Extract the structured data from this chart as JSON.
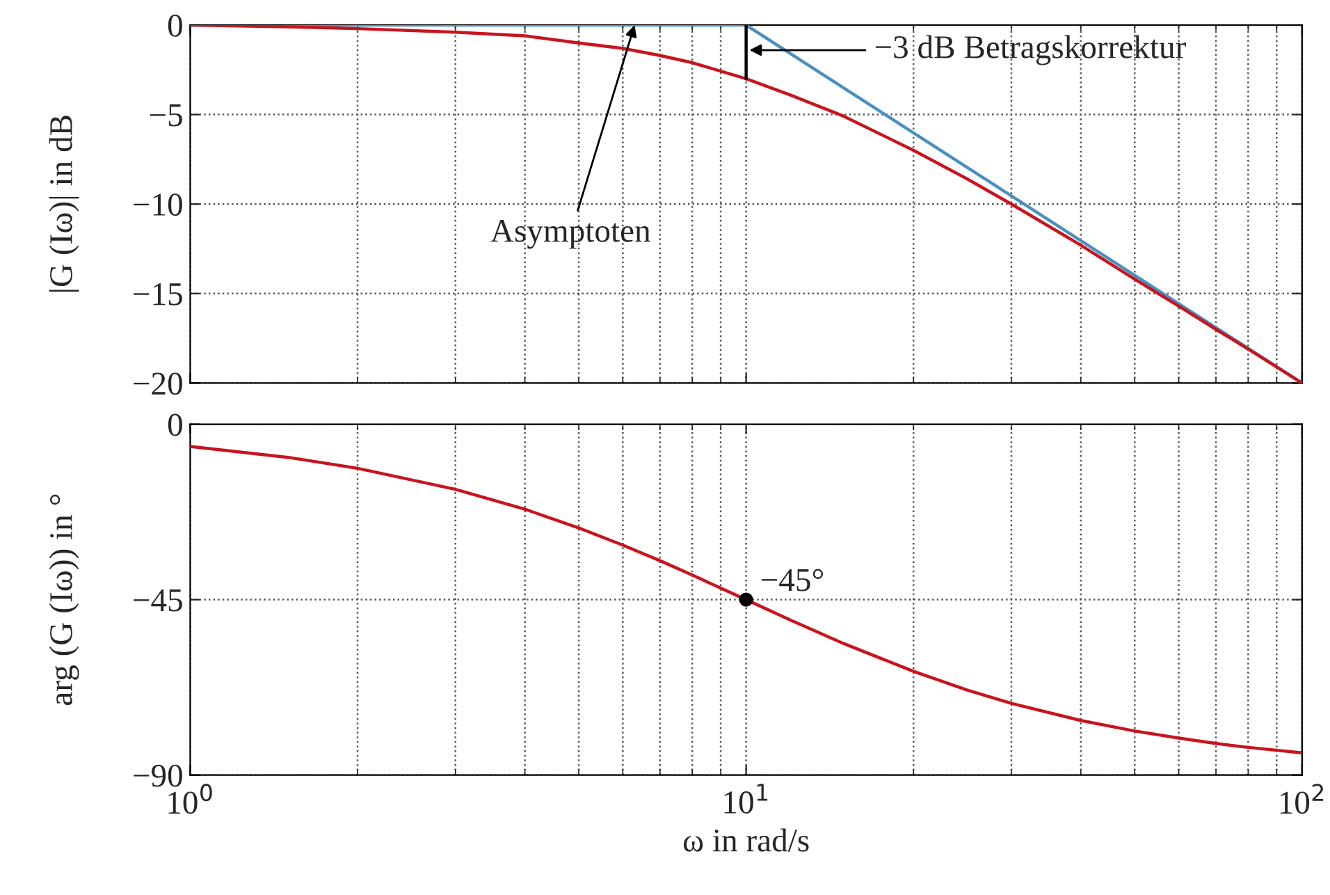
{
  "chart_data": [
    {
      "type": "line",
      "ylabel": "|G (Iω)| in dB",
      "xlim": [
        1,
        100
      ],
      "ylim": [
        -20,
        0
      ],
      "log": "x",
      "xticks": [
        1,
        10,
        100
      ],
      "yticks": [
        {
          "value": -20,
          "label": "−20"
        },
        {
          "value": -15,
          "label": "−15"
        },
        {
          "value": -10,
          "label": "−10"
        },
        {
          "value": -5,
          "label": "−5"
        },
        0
      ],
      "tick_labels": "y",
      "grid": true,
      "legend": false,
      "series": [
        {
          "color": "#4a8fc0",
          "x": [
            1,
            10,
            100
          ],
          "values": [
            0,
            0,
            -20
          ]
        },
        {
          "color": "#c8141e",
          "x": [
            1,
            1.5,
            2,
            3,
            4,
            5,
            6,
            7,
            8,
            10,
            12,
            15,
            20,
            25,
            30,
            40,
            50,
            60,
            70,
            80,
            100
          ],
          "values": [
            0.0,
            -0.1,
            -0.2,
            -0.4,
            -0.6,
            -1.0,
            -1.3,
            -1.7,
            -2.1,
            -3.0,
            -3.9,
            -5.1,
            -7.0,
            -8.6,
            -10.0,
            -12.3,
            -14.2,
            -15.7,
            -17.0,
            -18.1,
            -20.0
          ]
        },
        {
          "color": "#000000",
          "x": [
            10,
            10
          ],
          "values": [
            0,
            -3.0
          ]
        }
      ],
      "annotations": [
        "−3 dB Betragskorrektur",
        {
          "text": "Asymptoten",
          "x": 6.3,
          "y": 0
        }
      ]
    },
    {
      "type": "line",
      "xlabel": "ω in rad/s",
      "ylabel": "arg (G (Iω)) in °",
      "xlim": [
        1,
        100
      ],
      "ylim": [
        -90,
        0
      ],
      "log": "x",
      "xticks": [
        {
          "value": 1,
          "label": "10$^{0}$"
        },
        {
          "value": 10,
          "label": "10$^{1}$"
        },
        {
          "value": 100,
          "label": "10$^{2}$"
        }
      ],
      "yticks": [
        {
          "value": -90,
          "label": "−90"
        },
        {
          "value": -45,
          "label": "−45"
        },
        0
      ],
      "grid": true,
      "legend": false,
      "series": [
        {
          "color": "#c8141e",
          "x": [
            1,
            1.5,
            2,
            3,
            4,
            5,
            6,
            7,
            8,
            10,
            12,
            15,
            20,
            25,
            30,
            40,
            50,
            60,
            70,
            80,
            100
          ],
          "values": [
            -5.7,
            -8.5,
            -11.3,
            -16.7,
            -21.8,
            -26.6,
            -31.0,
            -35.0,
            -38.7,
            -45.0,
            -50.2,
            -56.3,
            -63.4,
            -68.2,
            -71.6,
            -76.0,
            -78.7,
            -80.5,
            -81.9,
            -82.9,
            -84.3
          ]
        },
        {
          "type": "scatter",
          "color": "#000000",
          "marker": "circle",
          "x": [
            10
          ],
          "values": [
            -45
          ]
        }
      ],
      "annotations": [
        {
          "text": "−45°",
          "x": 10,
          "y": -45
        }
      ]
    }
  ]
}
